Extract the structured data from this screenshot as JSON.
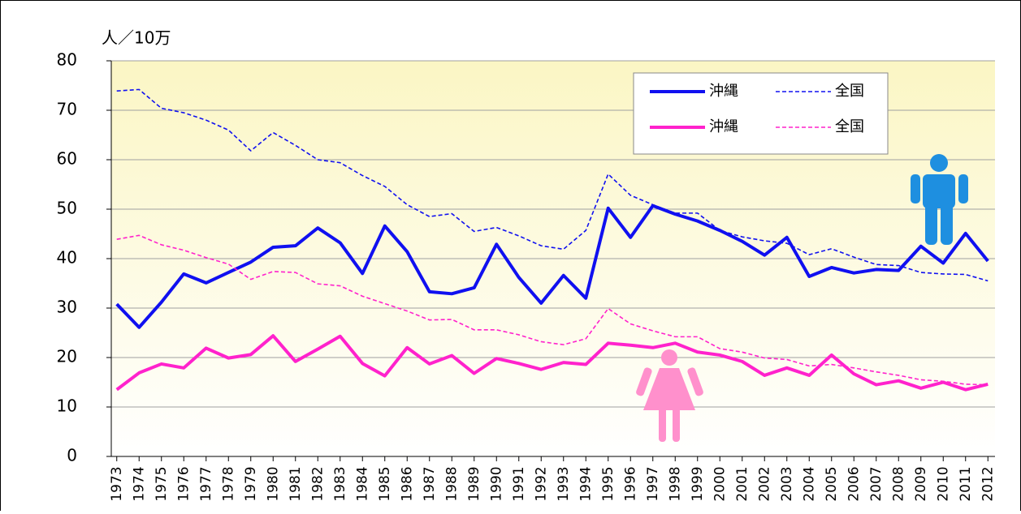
{
  "chart_data": {
    "type": "line",
    "y_label": "人／10万",
    "categories": [
      "1973",
      "1974",
      "1975",
      "1976",
      "1977",
      "1978",
      "1979",
      "1980",
      "1981",
      "1982",
      "1983",
      "1984",
      "1985",
      "1986",
      "1987",
      "1988",
      "1989",
      "1990",
      "1991",
      "1992",
      "1993",
      "1994",
      "1995",
      "1996",
      "1997",
      "1998",
      "1999",
      "2000",
      "2001",
      "2002",
      "2003",
      "2004",
      "2005",
      "2006",
      "2007",
      "2008",
      "2009",
      "2010",
      "2011",
      "2012"
    ],
    "series": [
      {
        "name": "沖縄",
        "color": "#1010f0",
        "dash": false,
        "values": [
          30.8,
          26.1,
          31.2,
          36.9,
          35.1,
          37.2,
          39.3,
          42.3,
          42.6,
          46.2,
          43.2,
          37.0,
          46.6,
          41.4,
          33.3,
          32.9,
          34.1,
          42.9,
          36.2,
          31.0,
          36.6,
          32.0,
          50.2,
          44.3,
          50.7,
          49.0,
          47.6,
          45.7,
          43.5,
          40.7,
          44.3,
          36.4,
          38.2,
          37.1,
          37.8,
          37.6,
          42.5,
          39.1,
          45.1,
          39.5
        ]
      },
      {
        "name": "全国",
        "color": "#1010f0",
        "dash": true,
        "values": [
          73.9,
          74.2,
          70.4,
          69.5,
          68.0,
          66.0,
          61.8,
          65.5,
          62.9,
          60.0,
          59.4,
          56.8,
          54.6,
          50.9,
          48.5,
          49.1,
          45.5,
          46.3,
          44.6,
          42.6,
          41.9,
          45.7,
          57.1,
          52.8,
          50.9,
          49.2,
          49.2,
          45.7,
          44.4,
          43.6,
          43.1,
          40.8,
          42.0,
          40.3,
          38.8,
          38.6,
          37.2,
          36.9,
          36.8,
          35.5
        ]
      },
      {
        "name": "沖縄",
        "color": "#ff22cc",
        "dash": false,
        "values": [
          13.5,
          16.9,
          18.7,
          17.9,
          21.9,
          19.9,
          20.6,
          24.4,
          19.2,
          21.7,
          24.3,
          18.8,
          16.3,
          22.0,
          18.7,
          20.4,
          16.8,
          19.8,
          18.8,
          17.6,
          19.0,
          18.6,
          22.9,
          22.5,
          22.0,
          22.9,
          21.1,
          20.5,
          19.2,
          16.4,
          17.9,
          16.4,
          20.5,
          16.7,
          14.5,
          15.3,
          13.8,
          15.0,
          13.5,
          14.6
        ]
      },
      {
        "name": "全国",
        "color": "#ff22cc",
        "dash": true,
        "values": [
          43.9,
          44.7,
          42.8,
          41.7,
          40.2,
          38.9,
          35.8,
          37.4,
          37.2,
          34.9,
          34.5,
          32.4,
          30.9,
          29.4,
          27.6,
          27.7,
          25.6,
          25.6,
          24.6,
          23.2,
          22.6,
          23.8,
          29.9,
          26.8,
          25.4,
          24.2,
          24.2,
          21.8,
          21.1,
          19.9,
          19.6,
          18.3,
          18.6,
          17.9,
          17.1,
          16.4,
          15.5,
          15.2,
          14.6,
          14.5
        ]
      }
    ],
    "ylim": [
      0,
      80
    ],
    "yticks": [
      0,
      10,
      20,
      30,
      40,
      50,
      60,
      70,
      80
    ],
    "grid": true
  }
}
